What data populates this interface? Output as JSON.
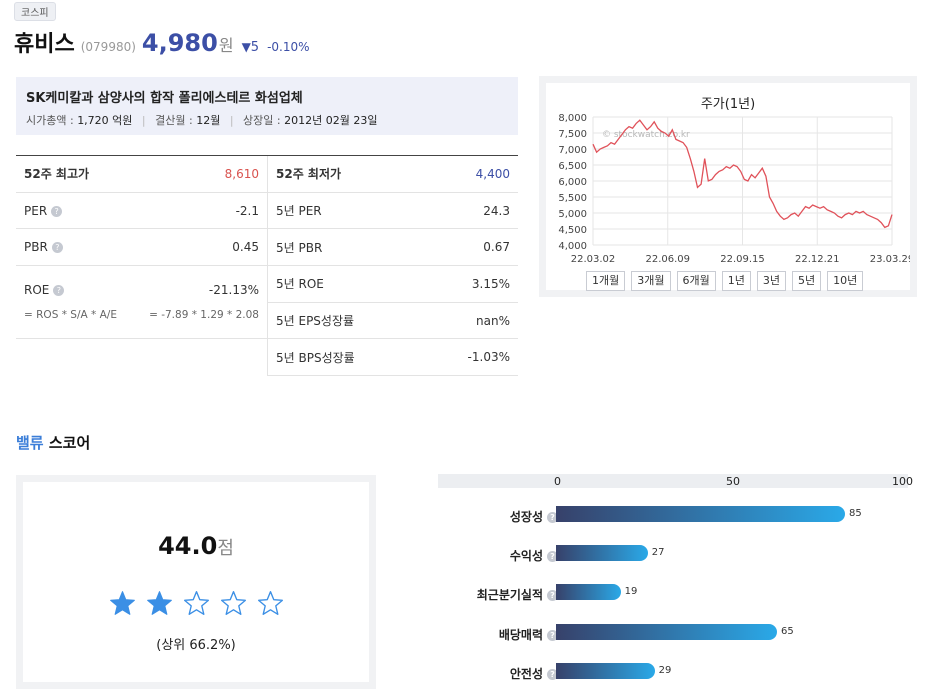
{
  "header": {
    "market_badge": "코스피",
    "name": "휴비스",
    "code": "(079980)",
    "price": "4,980",
    "price_unit": "원",
    "change_arrow": "▼",
    "change": "5",
    "change_pct": "-0.10%"
  },
  "summary": {
    "description": "SK케미칼과 삼양사의 합작 폴리에스테르 화섬업체",
    "market_cap_label": "시가총액 :",
    "market_cap": "1,720 억원",
    "fiscal_label": "결산월 :",
    "fiscal": "12월",
    "listing_label": "상장일 :",
    "listing": "2012년 02월 23일"
  },
  "ratios": {
    "left": [
      {
        "label": "52주 최고가",
        "value": "8,610"
      },
      {
        "label": "PER",
        "value": "-2.1"
      },
      {
        "label": "PBR",
        "value": "0.45"
      },
      {
        "label": "ROE",
        "value": "-21.13%",
        "formula": "= ROS * S/A * A/E",
        "formula_value": "= -7.89 * 1.29 * 2.08"
      }
    ],
    "right": [
      {
        "label": "52주 최저가",
        "value": "4,400"
      },
      {
        "label": "5년 PER",
        "value": "24.3"
      },
      {
        "label": "5년 PBR",
        "value": "0.67"
      },
      {
        "label": "5년 ROE",
        "value": "3.15%"
      },
      {
        "label": "5년 EPS성장률",
        "value": "nan%"
      },
      {
        "label": "5년 BPS성장률",
        "value": "-1.03%"
      }
    ]
  },
  "price_chart": {
    "title": "주가(1년)",
    "watermark": "© stockwatch.co.kr",
    "y_ticks": [
      "8,000",
      "7,500",
      "7,000",
      "6,500",
      "6,000",
      "5,500",
      "5,000",
      "4,500",
      "4,000"
    ],
    "y_range": [
      4000,
      8000
    ],
    "x_ticks": [
      "22.03.02",
      "22.06.09",
      "22.09.15",
      "22.12.21",
      "23.03.29"
    ],
    "series": [
      7150,
      6900,
      7000,
      7050,
      7100,
      7200,
      7150,
      7300,
      7450,
      7600,
      7700,
      7650,
      7800,
      7900,
      7750,
      7600,
      7700,
      7850,
      7650,
      7550,
      7500,
      7400,
      7600,
      7300,
      7250,
      7200,
      7050,
      6700,
      6300,
      5800,
      5900,
      6700,
      6000,
      6050,
      6200,
      6300,
      6350,
      6450,
      6400,
      6500,
      6450,
      6300,
      6050,
      6000,
      6200,
      6100,
      6250,
      6400,
      6150,
      5500,
      5300,
      5050,
      4900,
      4800,
      4850,
      4950,
      5000,
      4900,
      5050,
      5200,
      5150,
      5250,
      5200,
      5150,
      5200,
      5100,
      5050,
      5000,
      4900,
      4850,
      4950,
      5000,
      4950,
      5050,
      5000,
      5050,
      4950,
      4900,
      4850,
      4800,
      4700,
      4550,
      4600,
      4950
    ],
    "period_buttons": [
      "1개월",
      "3개월",
      "6개월",
      "1년",
      "3년",
      "5년",
      "10년"
    ]
  },
  "value_score": {
    "title_highlight": "밸류",
    "title_rest": "스코어",
    "score": "44.0",
    "score_unit": "점",
    "stars_filled": 2,
    "stars_total": 5,
    "rank": "(상위 66.2%)"
  },
  "score_bars": {
    "axis_ticks": [
      "0",
      "50",
      "100"
    ],
    "max": 100,
    "items": [
      {
        "label": "성장성",
        "value": 85
      },
      {
        "label": "수익성",
        "value": 27
      },
      {
        "label": "최근분기실적",
        "value": 19
      },
      {
        "label": "배당매력",
        "value": 65
      },
      {
        "label": "안전성",
        "value": 29
      }
    ]
  }
}
